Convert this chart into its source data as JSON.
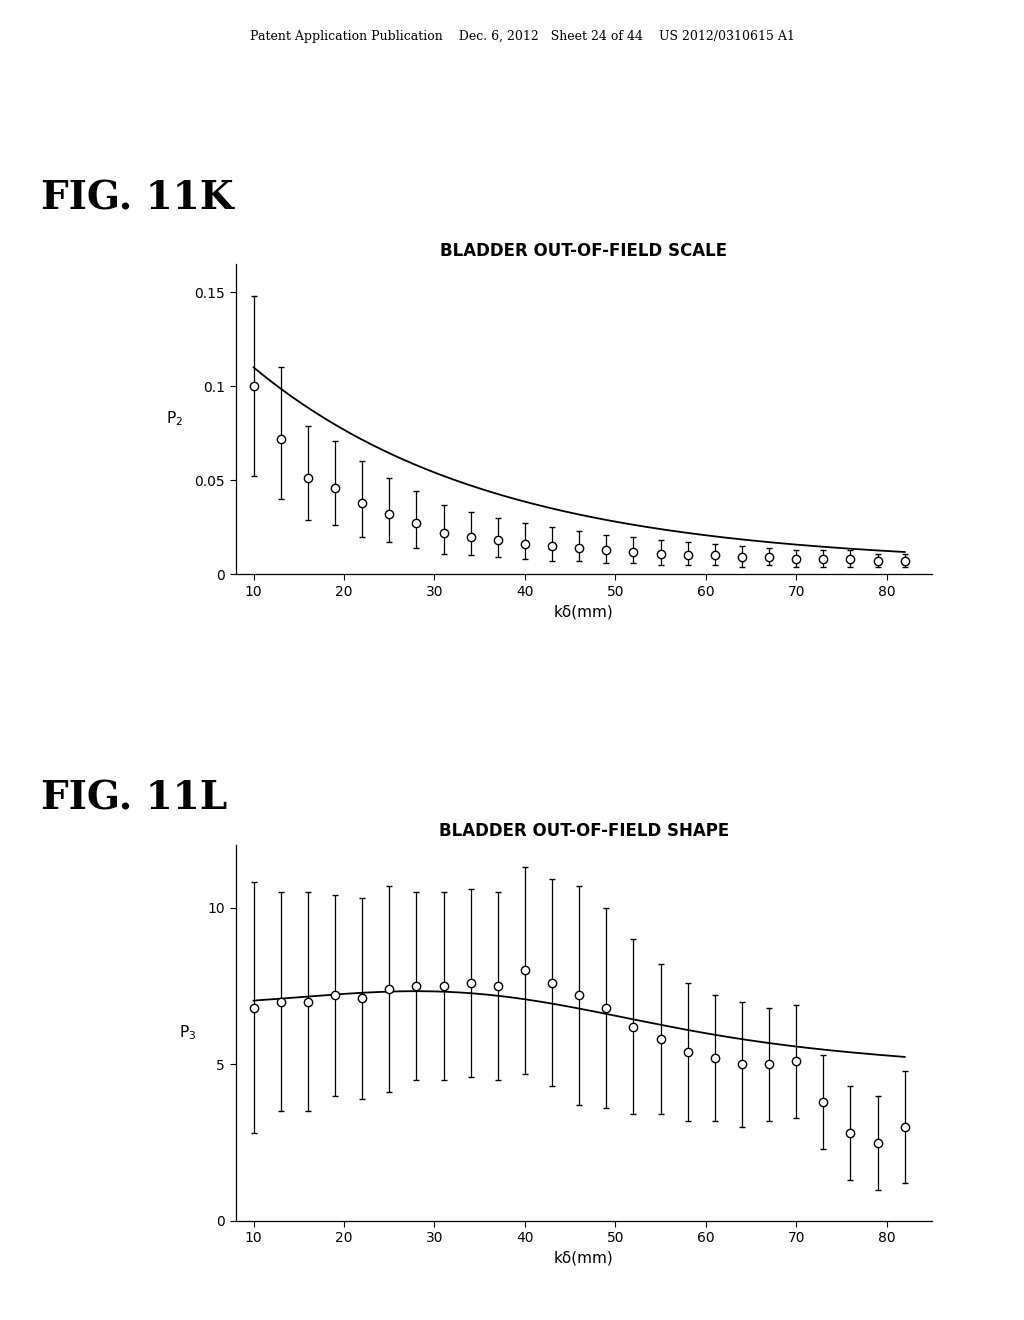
{
  "fig11k": {
    "title": "BLADDER OUT-OF-FIELD SCALE",
    "ylabel": "P$_2$",
    "xlabel": "kδ(mm)",
    "x_data": [
      10,
      13,
      16,
      19,
      22,
      25,
      28,
      31,
      34,
      37,
      40,
      43,
      46,
      49,
      52,
      55,
      58,
      61,
      64,
      67,
      70,
      73,
      76,
      79,
      82
    ],
    "y_data": [
      0.1,
      0.072,
      0.051,
      0.046,
      0.038,
      0.032,
      0.027,
      0.022,
      0.02,
      0.018,
      0.016,
      0.015,
      0.014,
      0.013,
      0.012,
      0.011,
      0.01,
      0.01,
      0.009,
      0.009,
      0.008,
      0.008,
      0.008,
      0.007,
      0.007
    ],
    "y_err_upper": [
      0.048,
      0.038,
      0.028,
      0.025,
      0.022,
      0.019,
      0.017,
      0.015,
      0.013,
      0.012,
      0.011,
      0.01,
      0.009,
      0.008,
      0.008,
      0.007,
      0.007,
      0.006,
      0.006,
      0.005,
      0.005,
      0.005,
      0.005,
      0.004,
      0.004
    ],
    "y_err_lower": [
      0.048,
      0.032,
      0.022,
      0.02,
      0.018,
      0.015,
      0.013,
      0.011,
      0.01,
      0.009,
      0.008,
      0.008,
      0.007,
      0.007,
      0.006,
      0.006,
      0.005,
      0.005,
      0.005,
      0.004,
      0.004,
      0.004,
      0.004,
      0.003,
      0.003
    ],
    "curve_x": [
      10,
      13,
      16,
      19,
      22,
      25,
      28,
      31,
      34,
      37,
      40,
      43,
      46,
      49,
      52,
      55,
      58,
      61,
      64,
      67,
      70,
      73,
      76,
      79,
      82
    ],
    "curve_y": [
      0.1,
      0.072,
      0.052,
      0.04,
      0.032,
      0.026,
      0.022,
      0.019,
      0.016,
      0.014,
      0.013,
      0.012,
      0.011,
      0.01,
      0.009,
      0.009,
      0.008,
      0.008,
      0.007,
      0.007,
      0.007,
      0.006,
      0.006,
      0.006,
      0.006
    ],
    "ylim": [
      0,
      0.165
    ],
    "yticks": [
      0,
      0.05,
      0.1,
      0.15
    ],
    "xlim": [
      8,
      85
    ],
    "xticks": [
      10,
      20,
      30,
      40,
      50,
      60,
      70,
      80
    ]
  },
  "fig11l": {
    "title": "BLADDER OUT-OF-FIELD SHAPE",
    "ylabel": "P$_3$",
    "xlabel": "kδ(mm)",
    "x_data": [
      10,
      13,
      16,
      19,
      22,
      25,
      28,
      31,
      34,
      37,
      40,
      43,
      46,
      49,
      52,
      55,
      58,
      61,
      64,
      67,
      70,
      73,
      76,
      79,
      82
    ],
    "y_data": [
      6.8,
      7.0,
      7.0,
      7.2,
      7.1,
      7.4,
      7.5,
      7.5,
      7.6,
      7.5,
      8.0,
      7.6,
      7.2,
      6.8,
      6.2,
      5.8,
      5.4,
      5.2,
      5.0,
      5.0,
      5.1,
      3.8,
      2.8,
      2.5,
      3.0
    ],
    "y_err_upper": [
      4.0,
      3.5,
      3.5,
      3.2,
      3.2,
      3.3,
      3.0,
      3.0,
      3.0,
      3.0,
      3.3,
      3.3,
      3.5,
      3.2,
      2.8,
      2.4,
      2.2,
      2.0,
      2.0,
      1.8,
      1.8,
      1.5,
      1.5,
      1.5,
      1.8
    ],
    "y_err_lower": [
      4.0,
      3.5,
      3.5,
      3.2,
      3.2,
      3.3,
      3.0,
      3.0,
      3.0,
      3.0,
      3.3,
      3.3,
      3.5,
      3.2,
      2.8,
      2.4,
      2.2,
      2.0,
      2.0,
      1.8,
      1.8,
      1.5,
      1.5,
      1.5,
      1.8
    ],
    "curve_x": [
      10,
      13,
      16,
      19,
      22,
      25,
      28,
      31,
      34,
      37,
      40,
      43,
      46,
      49,
      52,
      55,
      58,
      61,
      64,
      67,
      70,
      73,
      76,
      79,
      82
    ],
    "curve_y": [
      6.7,
      6.9,
      7.1,
      7.2,
      7.3,
      7.4,
      7.45,
      7.5,
      7.5,
      7.5,
      7.45,
      7.3,
      7.1,
      6.8,
      6.5,
      6.1,
      5.7,
      5.3,
      4.9,
      4.5,
      4.1,
      3.7,
      3.3,
      3.0,
      2.7
    ],
    "ylim": [
      0,
      12
    ],
    "yticks": [
      0,
      5,
      10
    ],
    "xlim": [
      8,
      85
    ],
    "xticks": [
      10,
      20,
      30,
      40,
      50,
      60,
      70,
      80
    ]
  },
  "header_text": "Patent Application Publication    Dec. 6, 2012   Sheet 24 of 44    US 2012/0310615 A1",
  "fig11k_label": "FIG. 11K",
  "fig11l_label": "FIG. 11L",
  "bg_color": "#ffffff",
  "line_color": "#000000",
  "marker_color": "#000000",
  "chart_title_fontsize": 12,
  "axis_label_fontsize": 11,
  "tick_fontsize": 10,
  "fig_label_fontsize": 28,
  "header_fontsize": 9
}
